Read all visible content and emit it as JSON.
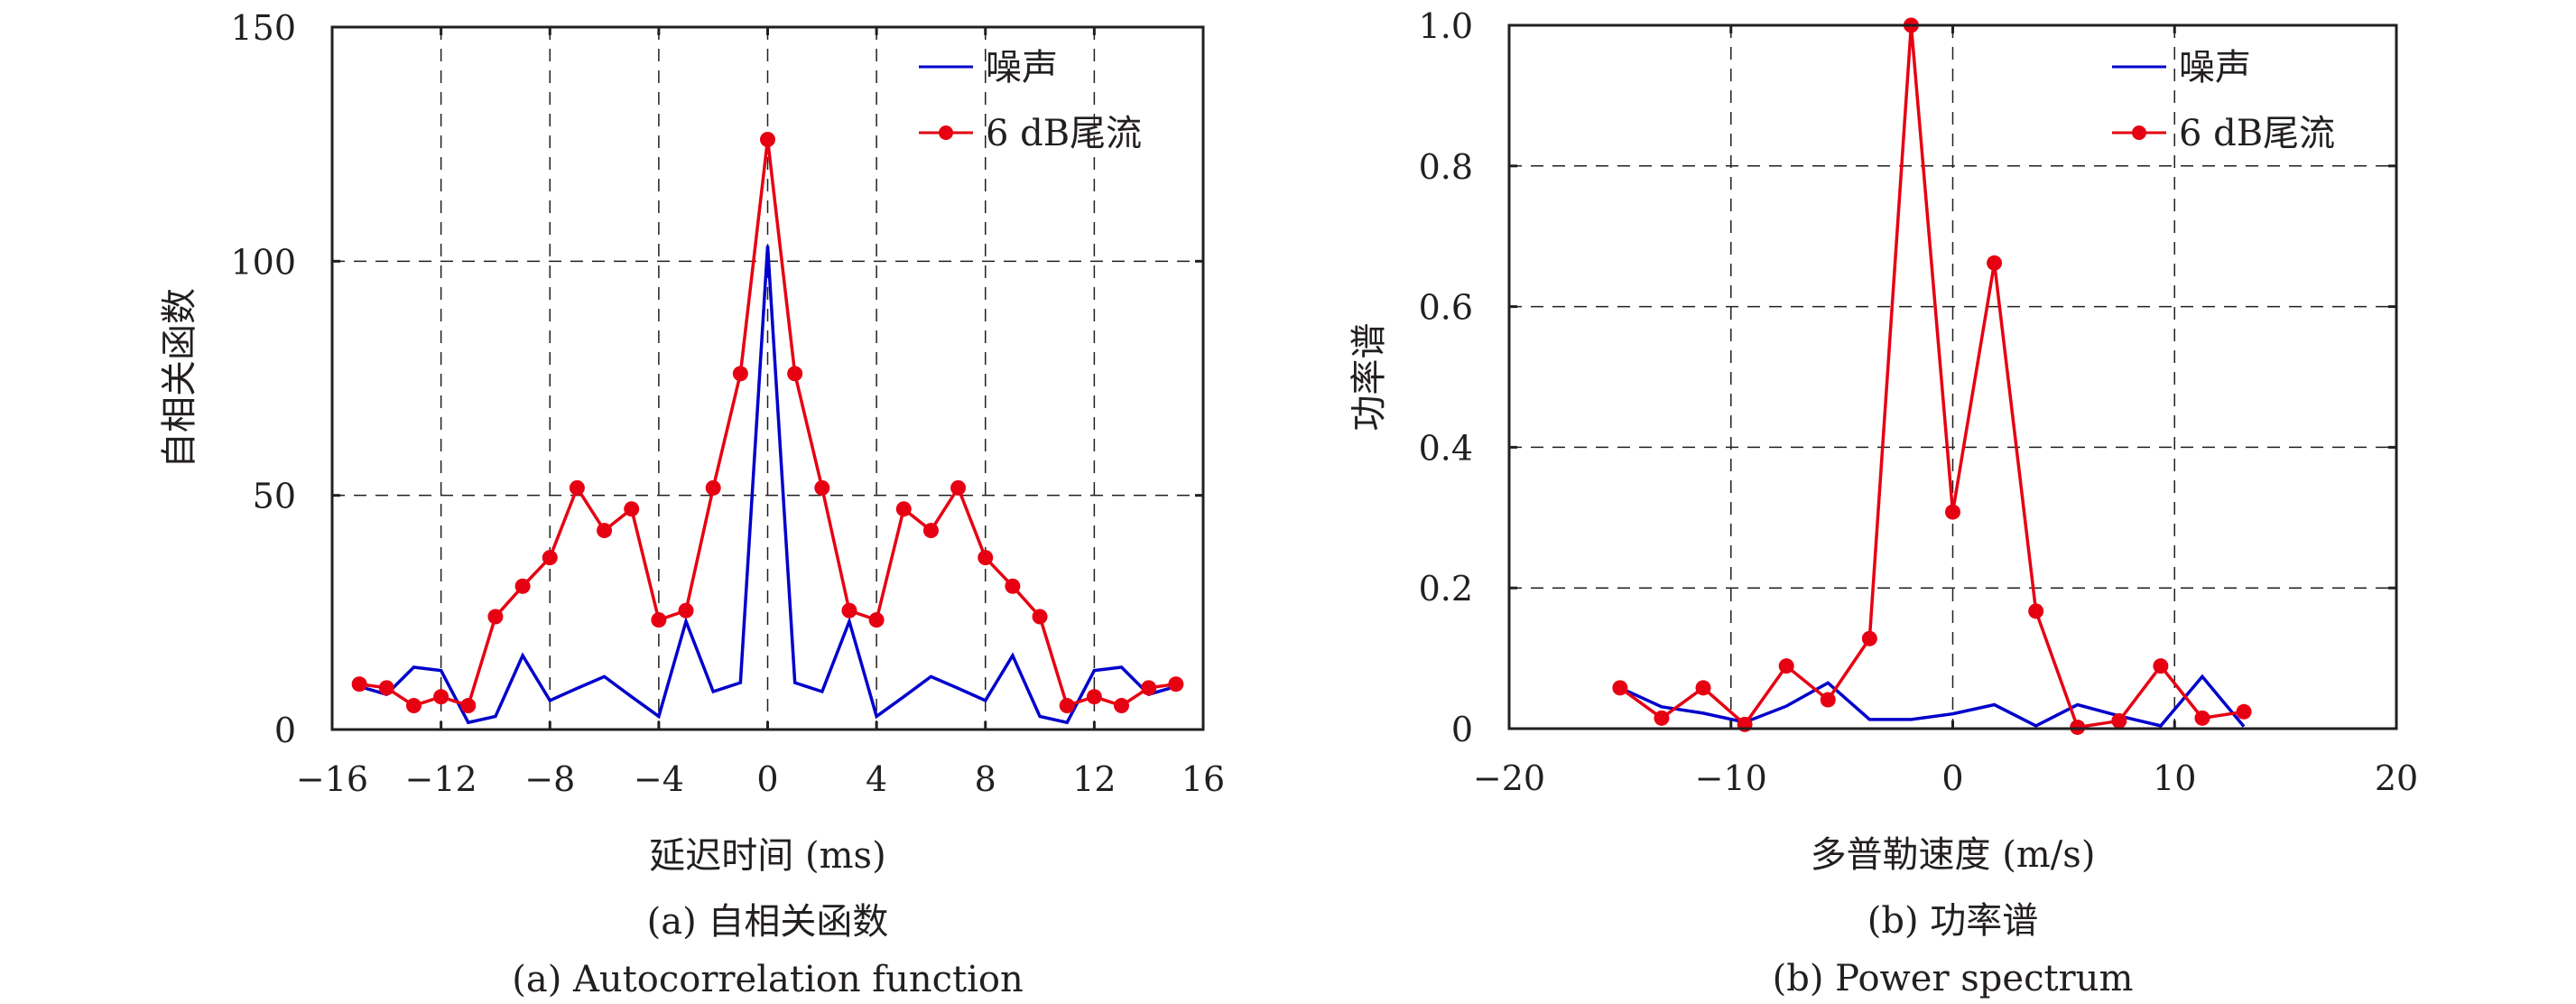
{
  "chart_data": [
    {
      "id": "autocorrelation",
      "type": "line",
      "title": "",
      "xlabel": "延迟时间 (ms)",
      "ylabel": "自相关函数",
      "xlim": [
        -16,
        16
      ],
      "ylim": [
        0,
        150
      ],
      "xticks": [
        -16,
        -12,
        -8,
        -4,
        0,
        4,
        8,
        12,
        16
      ],
      "yticks": [
        0,
        50,
        100,
        150
      ],
      "xtick_labels": [
        "−16",
        "−12",
        "−8",
        "−4",
        "0",
        "4",
        "8",
        "12",
        "16"
      ],
      "ytick_labels": [
        "0",
        "50",
        "100",
        "150"
      ],
      "grid": true,
      "legend_position": "top-right",
      "caption_cn": "(a) 自相关函数",
      "caption_en": "(a) Autocorrelation function",
      "x": [
        -15,
        -14,
        -13,
        -12,
        -11,
        -10,
        -9,
        -8,
        -7,
        -6,
        -5,
        -4,
        -3,
        -2,
        -1,
        0,
        1,
        2,
        3,
        4,
        5,
        6,
        7,
        8,
        9,
        10,
        11,
        12,
        13,
        14,
        15
      ],
      "series": [
        {
          "name": "噪声",
          "color": "#0000cc",
          "marker": "none",
          "values": [
            9.2,
            7.5,
            13.3,
            12.6,
            1.5,
            2.8,
            15.8,
            6.2,
            8.8,
            11.3,
            7.0,
            2.8,
            23.1,
            8.1,
            10.0,
            103.3,
            10.0,
            8.1,
            23.1,
            2.8,
            7.0,
            11.3,
            8.8,
            6.2,
            15.8,
            2.8,
            1.5,
            12.6,
            13.3,
            7.5,
            9.2
          ]
        },
        {
          "name": "6 dB尾流",
          "color": "#e60012",
          "marker": "circle",
          "values": [
            9.7,
            8.9,
            5.1,
            7.0,
            5.1,
            24.1,
            30.6,
            36.7,
            51.6,
            42.5,
            47.1,
            23.4,
            25.4,
            51.6,
            76.0,
            126.0,
            76.0,
            51.6,
            25.4,
            23.4,
            47.1,
            42.5,
            51.6,
            36.7,
            30.6,
            24.1,
            5.1,
            7.0,
            5.1,
            8.9,
            9.7
          ]
        }
      ]
    },
    {
      "id": "power-spectrum",
      "type": "line",
      "title": "",
      "xlabel": "多普勒速度 (m/s)",
      "ylabel": "功率谱",
      "xlim": [
        -20,
        20
      ],
      "ylim": [
        0,
        1.0
      ],
      "xticks": [
        -20,
        -10,
        0,
        10,
        20
      ],
      "yticks": [
        0,
        0.2,
        0.4,
        0.6,
        0.8,
        1.0
      ],
      "xtick_labels": [
        "−20",
        "−10",
        "0",
        "10",
        "20"
      ],
      "ytick_labels": [
        "0",
        "0.2",
        "0.4",
        "0.6",
        "0.8",
        "1.0"
      ],
      "grid": true,
      "legend_position": "top-right",
      "caption_cn": "(b) 功率谱",
      "caption_en": "(b) Power spectrum",
      "x": [
        -15,
        -13.125,
        -11.25,
        -9.375,
        -7.5,
        -5.625,
        -3.75,
        -1.875,
        0,
        1.875,
        3.75,
        5.625,
        7.5,
        9.375,
        11.25,
        13.125
      ],
      "series": [
        {
          "name": "噪声",
          "color": "#0000cc",
          "marker": "none",
          "values": [
            0.058,
            0.031,
            0.022,
            0.009,
            0.032,
            0.065,
            0.013,
            0.013,
            0.021,
            0.034,
            0.004,
            0.034,
            0.018,
            0.004,
            0.074,
            0.003
          ]
        },
        {
          "name": "6 dB尾流",
          "color": "#e60012",
          "marker": "circle",
          "values": [
            0.058,
            0.015,
            0.058,
            0.006,
            0.089,
            0.041,
            0.128,
            1.0,
            0.308,
            0.662,
            0.167,
            0.002,
            0.011,
            0.089,
            0.015,
            0.024
          ]
        }
      ]
    }
  ]
}
